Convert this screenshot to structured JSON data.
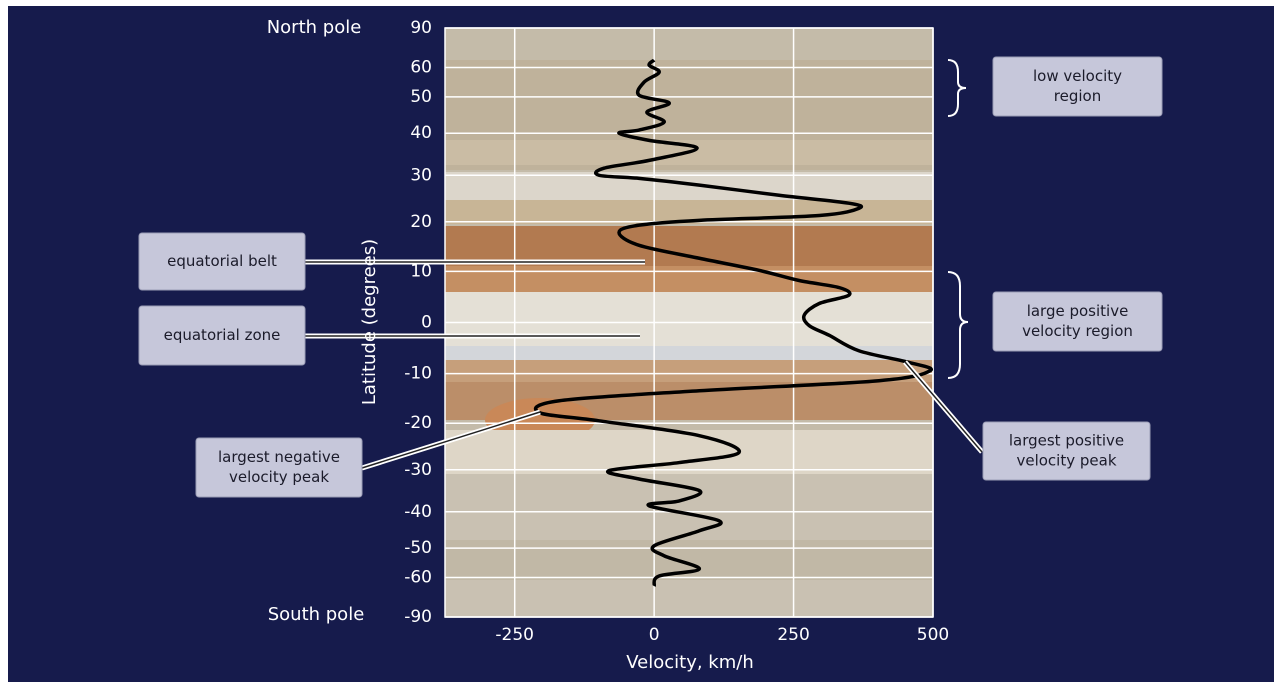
{
  "chart_data": {
    "type": "line",
    "top_label": "North pole",
    "bottom_label": "South pole",
    "xlabel": "Velocity, km/h",
    "ylabel": "Latitude (degrees)",
    "yscale": "sin",
    "xlim": [
      -375,
      500
    ],
    "xticks": [
      -250,
      0,
      250,
      500
    ],
    "ylim": [
      -90,
      90
    ],
    "yticks": [
      90,
      60,
      50,
      40,
      30,
      20,
      10,
      0,
      -10,
      -20,
      -30,
      -40,
      -50,
      -60,
      -90
    ],
    "grid": true,
    "color": "#000000",
    "x": [
      0,
      -9,
      9,
      -18,
      -27,
      27,
      -13,
      18,
      -27,
      -63,
      -9,
      77,
      -9,
      -90,
      -99,
      -27,
      81,
      224,
      349,
      367,
      296,
      81,
      -27,
      -63,
      -27,
      81,
      188,
      260,
      332,
      349,
      296,
      269,
      278,
      314,
      367,
      457,
      495,
      403,
      81,
      -170,
      -206,
      -99,
      81,
      152,
      45,
      -81,
      -27,
      81,
      45,
      -9,
      116,
      81,
      0,
      18,
      81,
      9,
      0
    ],
    "y": [
      63,
      60.9,
      58.2,
      54.7,
      50.5,
      48.2,
      45.6,
      42.9,
      40.8,
      40,
      38.2,
      36.3,
      33.4,
      31.6,
      30,
      29.3,
      27.8,
      25.6,
      23.9,
      22.8,
      21.3,
      20.3,
      19.3,
      17.8,
      15.2,
      12.6,
      10.2,
      8.2,
      6.8,
      5.3,
      3.7,
      1.4,
      -0.6,
      -2.5,
      -5.5,
      -7.8,
      -9.4,
      -11.4,
      -13.4,
      -15.4,
      -17.8,
      -19.5,
      -22.6,
      -26.2,
      -28.4,
      -30.2,
      -32.1,
      -34.8,
      -37.3,
      -38.5,
      -42.3,
      -45,
      -49.3,
      -52.4,
      -56.8,
      -59.4,
      -63.5
    ],
    "annotations": [
      {
        "lines": [
          "low velocity",
          "region"
        ]
      },
      {
        "lines": [
          "large positive",
          "velocity region"
        ]
      },
      {
        "lines": [
          "largest positive",
          "velocity peak"
        ]
      },
      {
        "lines": [
          "equatorial belt"
        ]
      },
      {
        "lines": [
          "equatorial zone"
        ]
      },
      {
        "lines": [
          "largest negative",
          "velocity peak"
        ]
      }
    ]
  }
}
